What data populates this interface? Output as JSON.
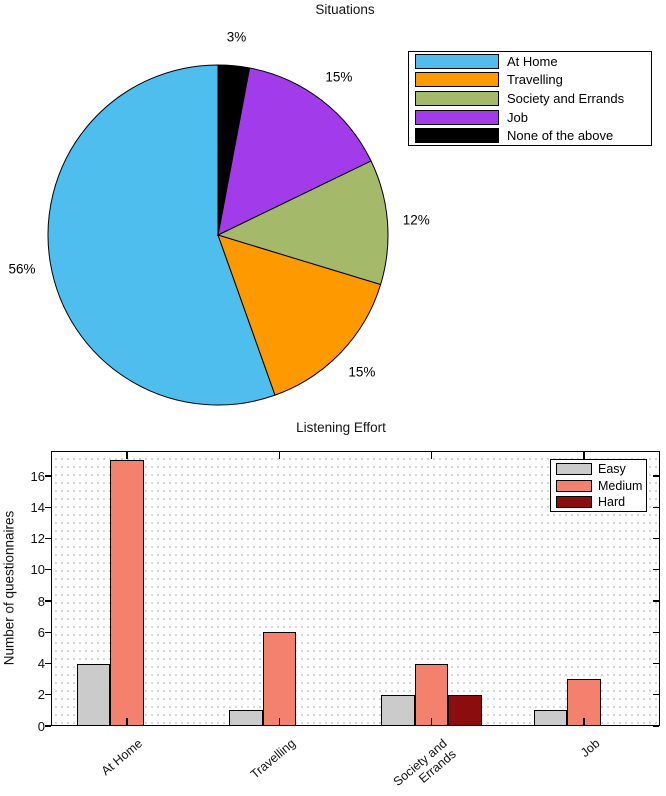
{
  "chart_data": [
    {
      "type": "pie",
      "title": "Situations",
      "slices": [
        {
          "label": "At Home",
          "value": 56,
          "percent_label": "56%",
          "color": "#4DBEEE"
        },
        {
          "label": "Travelling",
          "value": 15,
          "percent_label": "15%",
          "color": "#FF9900"
        },
        {
          "label": "Society and Errands",
          "value": 12,
          "percent_label": "12%",
          "color": "#A4BA6A"
        },
        {
          "label": "Job",
          "value": 15,
          "percent_label": "15%",
          "color": "#A23CEB"
        },
        {
          "label": "None of the above",
          "value": 3,
          "percent_label": "3%",
          "color": "#000000"
        }
      ],
      "start_angle": "12 o'clock",
      "direction": "counterclockwise",
      "legend_position": "upper right",
      "edge_color": "#000000"
    },
    {
      "type": "bar",
      "title": "Listening Effort",
      "ylabel": "Number of questionnaires",
      "categories": [
        [
          "At Home"
        ],
        [
          "Travelling"
        ],
        [
          "Society and",
          "Errands"
        ],
        [
          "Job"
        ]
      ],
      "series": [
        {
          "name": "Easy",
          "color": "#CBCBCB",
          "values": [
            4,
            1,
            2,
            1
          ]
        },
        {
          "name": "Medium",
          "color": "#F4806E",
          "values": [
            17,
            6,
            4,
            3
          ]
        },
        {
          "name": "Hard",
          "color": "#8C0D0D",
          "values": [
            0,
            0,
            2,
            0
          ]
        }
      ],
      "yticks": [
        0,
        2,
        4,
        6,
        8,
        10,
        12,
        14,
        16
      ],
      "ylim": [
        0,
        17.6
      ],
      "grid": "dotted",
      "legend_position": "upper right",
      "edge_color": "#000000"
    }
  ]
}
